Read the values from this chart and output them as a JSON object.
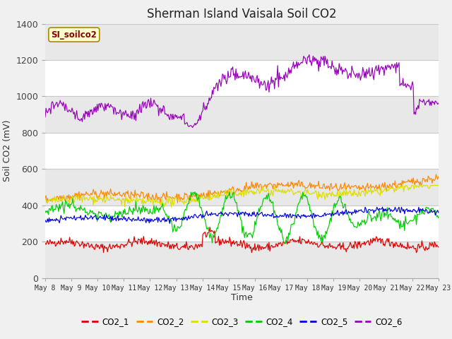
{
  "title": "Sherman Island Vaisala Soil CO2",
  "ylabel": "Soil CO2 (mV)",
  "xlabel": "Time",
  "legend_label": "SI_soilco2",
  "ylim": [
    0,
    1400
  ],
  "series_labels": [
    "CO2_1",
    "CO2_2",
    "CO2_3",
    "CO2_4",
    "CO2_5",
    "CO2_6"
  ],
  "series_colors": [
    "#dd0000",
    "#ff8800",
    "#dddd00",
    "#00cc00",
    "#0000dd",
    "#9900bb"
  ],
  "n_points": 500,
  "figure_facecolor": "#f0f0f0",
  "axes_facecolor": "#ffffff",
  "grid_color": "#d8d8d8",
  "band_color": "#e8e8e8",
  "title_fontsize": 12,
  "tick_dates": [
    "May 8",
    "May 9",
    "May 10",
    "May 11",
    "May 12",
    "May 13",
    "May 14",
    "May 15",
    "May 16",
    "May 17",
    "May 18",
    "May 19",
    "May 20",
    "May 21",
    "May 22",
    "May 23"
  ],
  "n_days": 15
}
